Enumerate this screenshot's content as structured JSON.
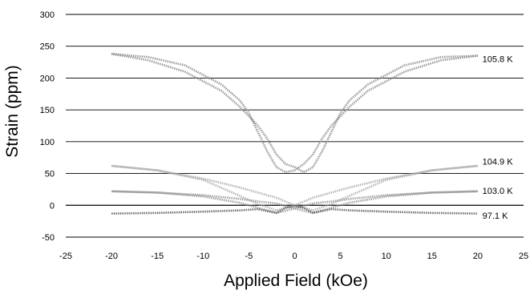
{
  "chart_data": {
    "type": "line",
    "title": "",
    "xlabel": "Applied Field (kOe)",
    "ylabel": "Strain (ppm)",
    "xlim": [
      -25,
      25
    ],
    "ylim": [
      -50,
      300
    ],
    "x_ticks": [
      -25,
      -20,
      -15,
      -10,
      -5,
      0,
      5,
      10,
      15,
      20,
      25
    ],
    "y_ticks": [
      -50,
      0,
      50,
      100,
      150,
      200,
      250,
      300
    ],
    "grid": "horizontal",
    "legend": "none",
    "series": [
      {
        "name": "105.8 K",
        "color": "#8a8a8a",
        "branches": [
          {
            "x": [
              -20,
              -16,
              -12,
              -8,
              -6,
              -5,
              -4,
              -3,
              -2,
              -1,
              0,
              1,
              2,
              3,
              4,
              6,
              8,
              12,
              16,
              20
            ],
            "y": [
              238,
              233,
              220,
              190,
              165,
              145,
              115,
              85,
              60,
              52,
              55,
              65,
              80,
              105,
              125,
              155,
              180,
              210,
              228,
              235
            ]
          },
          {
            "x": [
              20,
              16,
              12,
              8,
              6,
              5,
              4,
              3,
              2,
              1,
              0,
              -1,
              -2,
              -3,
              -4,
              -6,
              -8,
              -12,
              -16,
              -20
            ],
            "y": [
              235,
              233,
              220,
              190,
              165,
              145,
              115,
              85,
              60,
              52,
              60,
              65,
              80,
              105,
              125,
              155,
              180,
              210,
              228,
              238
            ]
          }
        ]
      },
      {
        "name": "104.9 K",
        "color": "#a8a8a8",
        "branches": [
          {
            "x": [
              -20,
              -15,
              -10,
              -6,
              -4,
              -2,
              0,
              2,
              4,
              6,
              10,
              15,
              20
            ],
            "y": [
              62,
              55,
              40,
              15,
              2,
              -8,
              0,
              12,
              20,
              28,
              42,
              55,
              62
            ]
          },
          {
            "x": [
              20,
              15,
              10,
              6,
              4,
              2,
              0,
              -2,
              -4,
              -6,
              -10,
              -15,
              -20
            ],
            "y": [
              62,
              55,
              40,
              15,
              2,
              -8,
              0,
              12,
              20,
              28,
              42,
              55,
              62
            ]
          }
        ]
      },
      {
        "name": "103.0 K",
        "color": "#909090",
        "branches": [
          {
            "x": [
              -20,
              -15,
              -10,
              -6,
              -4,
              -2,
              0,
              2,
              4,
              6,
              10,
              15,
              20
            ],
            "y": [
              22,
              20,
              14,
              4,
              -4,
              -12,
              -5,
              3,
              6,
              10,
              16,
              20,
              22
            ]
          },
          {
            "x": [
              20,
              15,
              10,
              6,
              4,
              2,
              0,
              -2,
              -4,
              -6,
              -10,
              -15,
              -20
            ],
            "y": [
              22,
              20,
              14,
              4,
              -4,
              -12,
              -5,
              3,
              6,
              10,
              16,
              20,
              22
            ]
          }
        ]
      },
      {
        "name": "97.1 K",
        "color": "#555555",
        "branches": [
          {
            "x": [
              -20,
              -15,
              -10,
              -6,
              -4,
              -2,
              -1,
              0,
              1,
              2,
              4,
              6,
              10,
              15,
              20
            ],
            "y": [
              -13,
              -12,
              -10,
              -8,
              -6,
              -12,
              -4,
              -1,
              -4,
              -12,
              -6,
              -8,
              -10,
              -12,
              -13
            ]
          }
        ]
      }
    ],
    "annotations": [
      {
        "text": "105.8 K",
        "x": 20.5,
        "y": 230
      },
      {
        "text": "104.9 K",
        "x": 20.5,
        "y": 69
      },
      {
        "text": "103.0 K",
        "x": 20.5,
        "y": 23
      },
      {
        "text": "97.1 K",
        "x": 20.5,
        "y": -16
      }
    ]
  }
}
